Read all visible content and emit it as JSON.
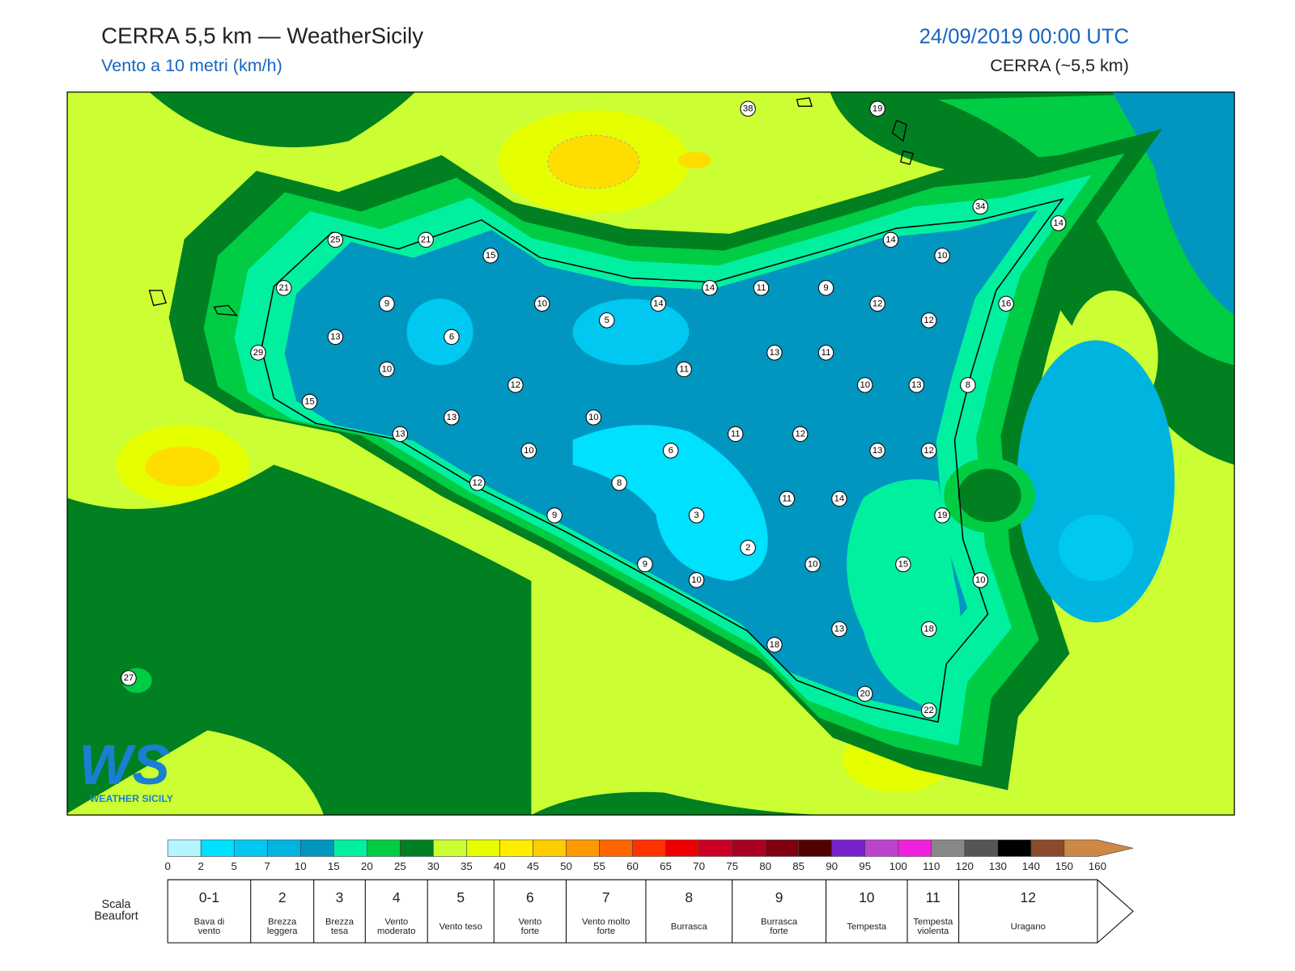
{
  "header": {
    "title": "CERRA 5,5 km — WeatherSicily",
    "subtitle": "Vento a 10 metri (km/h)",
    "datetime": "24/09/2019 00:00 UTC",
    "model": "CERRA (~5,5 km)"
  },
  "map": {
    "stations": [
      38,
      19,
      34,
      14,
      25,
      21,
      15,
      14,
      10,
      21,
      14,
      11,
      9,
      9,
      10,
      14,
      12,
      16,
      5,
      12,
      13,
      6,
      29,
      13,
      11,
      10,
      11,
      12,
      10,
      13,
      8,
      15,
      13,
      10,
      13,
      11,
      12,
      10,
      6,
      13,
      12,
      12,
      8,
      11,
      14,
      9,
      3,
      19,
      2,
      9,
      10,
      15,
      10,
      10,
      13,
      18,
      18,
      27,
      20,
      22
    ],
    "logo": {
      "mark": "WS",
      "name": "WEATHER SICILY"
    }
  },
  "colorbar": {
    "ticks": [
      0,
      2,
      5,
      7,
      10,
      15,
      20,
      25,
      30,
      35,
      40,
      45,
      50,
      55,
      60,
      65,
      70,
      75,
      80,
      85,
      90,
      95,
      100,
      110,
      120,
      130,
      140,
      150,
      160
    ],
    "colors": [
      "#b4f5ff",
      "#00e0ff",
      "#00c8f0",
      "#00b4e0",
      "#0096c0",
      "#00f0a0",
      "#00cc44",
      "#008020",
      "#ccff33",
      "#e6ff00",
      "#ffee00",
      "#ffcc00",
      "#ff9900",
      "#ff6600",
      "#ff3300",
      "#ee0000",
      "#cc0022",
      "#aa0022",
      "#800010",
      "#550000",
      "#7722cc",
      "#bb44cc",
      "#ee22dd",
      "#888888",
      "#555555",
      "#000000",
      "#8b4a2b",
      "#cc8844"
    ]
  },
  "beaufort": {
    "label": [
      "Scala",
      "Beaufort"
    ],
    "forces": [
      {
        "force": "0-1",
        "description": [
          "Bava di",
          "vento"
        ]
      },
      {
        "force": "2",
        "description": [
          "Brezza",
          "leggera"
        ]
      },
      {
        "force": "3",
        "description": [
          "Brezza",
          "tesa"
        ]
      },
      {
        "force": "4",
        "description": [
          "Vento",
          "moderato"
        ]
      },
      {
        "force": "5",
        "description": [
          "Vento teso"
        ]
      },
      {
        "force": "6",
        "description": [
          "Vento",
          "forte"
        ]
      },
      {
        "force": "7",
        "description": [
          "Vento molto",
          "forte"
        ]
      },
      {
        "force": "8",
        "description": [
          "Burrasca"
        ]
      },
      {
        "force": "9",
        "description": [
          "Burrasca",
          "forte"
        ]
      },
      {
        "force": "10",
        "description": [
          "Tempesta"
        ]
      },
      {
        "force": "11",
        "description": [
          "Tempesta",
          "violenta"
        ]
      },
      {
        "force": "12",
        "description": [
          "Uragano"
        ]
      }
    ]
  }
}
